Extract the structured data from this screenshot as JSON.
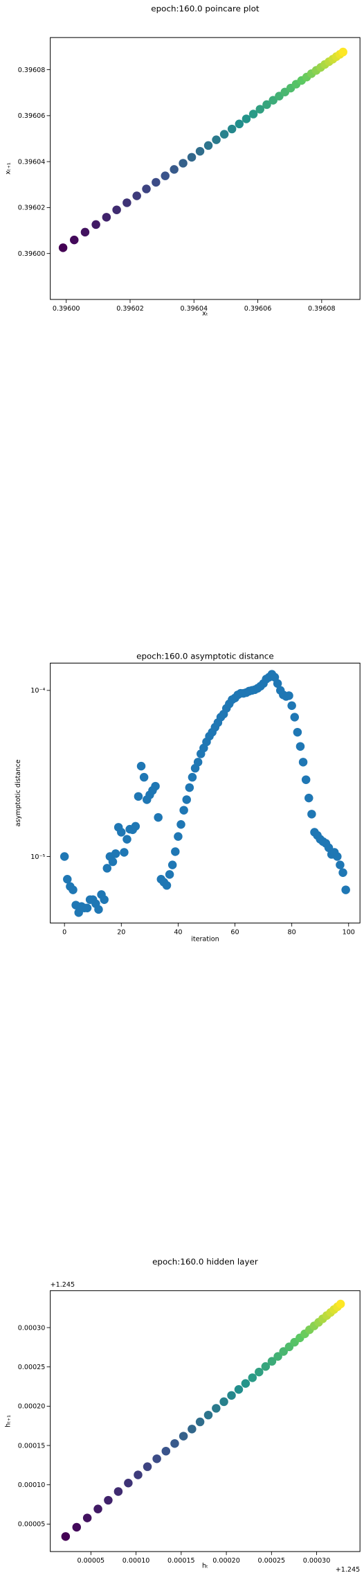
{
  "chart_data": [
    {
      "type": "scatter",
      "title": "epoch:160.0 poincare plot",
      "xlabel": "xₜ",
      "ylabel": "xₜ₊₁",
      "colormap": "viridis",
      "x": [
        0.395999,
        0.3960025,
        0.3960059,
        0.3960093,
        0.3960126,
        0.3960158,
        0.396019,
        0.3960221,
        0.3960251,
        0.3960281,
        0.396031,
        0.3960338,
        0.3960366,
        0.3960393,
        0.3960419,
        0.3960445,
        0.396047,
        0.3960495,
        0.3960519,
        0.3960542,
        0.3960564,
        0.3960586,
        0.3960607,
        0.3960628,
        0.3960648,
        0.3960667,
        0.3960685,
        0.3960703,
        0.396072,
        0.3960737,
        0.3960753,
        0.3960768,
        0.3960783,
        0.3960797,
        0.396081,
        0.3960823,
        0.3960835,
        0.3960846,
        0.3960857,
        0.3960867
      ],
      "y": [
        0.3960025,
        0.3960059,
        0.3960093,
        0.3960126,
        0.3960158,
        0.396019,
        0.3960221,
        0.3960251,
        0.3960281,
        0.396031,
        0.3960338,
        0.3960366,
        0.3960393,
        0.3960419,
        0.3960445,
        0.396047,
        0.3960495,
        0.3960519,
        0.3960542,
        0.3960564,
        0.3960586,
        0.3960607,
        0.3960628,
        0.3960648,
        0.3960667,
        0.3960685,
        0.3960703,
        0.396072,
        0.3960737,
        0.3960753,
        0.3960768,
        0.3960783,
        0.3960797,
        0.396081,
        0.3960823,
        0.3960835,
        0.3960846,
        0.3960857,
        0.3960867,
        0.3960877
      ],
      "xlim": [
        0.395995,
        0.396092
      ],
      "ylim": [
        0.39598,
        0.396094
      ],
      "xticks": [
        {
          "value": 0.396,
          "label": "0.39600"
        },
        {
          "value": 0.39602,
          "label": "0.39602"
        },
        {
          "value": 0.39604,
          "label": "0.39604"
        },
        {
          "value": 0.39606,
          "label": "0.39606"
        },
        {
          "value": 0.39608,
          "label": "0.39608"
        }
      ],
      "yticks": [
        {
          "value": 0.396,
          "label": "0.39600"
        },
        {
          "value": 0.39602,
          "label": "0.39602"
        },
        {
          "value": 0.39604,
          "label": "0.39604"
        },
        {
          "value": 0.39606,
          "label": "0.39606"
        },
        {
          "value": 0.39608,
          "label": "0.39608"
        }
      ]
    },
    {
      "type": "scatter",
      "title": "epoch:160.0 asymptotic distance",
      "xlabel": "iteration",
      "ylabel": "asymptotic distance",
      "color": "#1f77b4",
      "ylog": true,
      "x": [
        0,
        1,
        2,
        3,
        4,
        5,
        6,
        7,
        8,
        9,
        10,
        11,
        12,
        13,
        14,
        15,
        16,
        17,
        18,
        19,
        20,
        21,
        22,
        23,
        24,
        25,
        26,
        27,
        28,
        29,
        30,
        31,
        32,
        33,
        34,
        35,
        36,
        37,
        38,
        39,
        40,
        41,
        42,
        43,
        44,
        45,
        46,
        47,
        48,
        49,
        50,
        51,
        52,
        53,
        54,
        55,
        56,
        57,
        58,
        59,
        60,
        61,
        62,
        63,
        64,
        65,
        66,
        67,
        68,
        69,
        70,
        71,
        72,
        73,
        74,
        75,
        76,
        77,
        78,
        79,
        80,
        81,
        82,
        83,
        84,
        85,
        86,
        87,
        88,
        89,
        90,
        91,
        92,
        93,
        94,
        95,
        96,
        97,
        98,
        99
      ],
      "y": [
        1e-05,
        7.3e-06,
        6.6e-06,
        6.3e-06,
        5.1e-06,
        4.6e-06,
        5e-06,
        4.9e-06,
        4.9e-06,
        5.5e-06,
        5.5e-06,
        5.2e-06,
        4.8e-06,
        5.9e-06,
        5.5e-06,
        8.5e-06,
        1e-05,
        9.3e-06,
        1.04e-05,
        1.5e-05,
        1.4e-05,
        1.06e-05,
        1.27e-05,
        1.46e-05,
        1.45e-05,
        1.52e-05,
        2.3e-05,
        3.5e-05,
        3e-05,
        2.2e-05,
        2.35e-05,
        2.5e-05,
        2.65e-05,
        1.72e-05,
        7.3e-06,
        7e-06,
        6.7e-06,
        7.8e-06,
        8.9e-06,
        1.07e-05,
        1.32e-05,
        1.56e-05,
        1.9e-05,
        2.2e-05,
        2.6e-05,
        3e-05,
        3.4e-05,
        3.7e-05,
        4.15e-05,
        4.5e-05,
        4.9e-05,
        5.3e-05,
        5.6e-05,
        6e-05,
        6.4e-05,
        6.9e-05,
        7.2e-05,
        7.8e-05,
        8.3e-05,
        8.8e-05,
        9e-05,
        9.4e-05,
        9.6e-05,
        9.6e-05,
        9.7e-05,
        9.9e-05,
        0.0001,
        0.000101,
        0.000103,
        0.000106,
        0.00011,
        0.000117,
        0.00012,
        0.000125,
        0.00012,
        0.00011,
        0.0001,
        9.4e-05,
        9.2e-05,
        9.3e-05,
        8.1e-05,
        6.9e-05,
        5.6e-05,
        4.6e-05,
        3.7e-05,
        2.9e-05,
        2.25e-05,
        1.8e-05,
        1.4e-05,
        1.34e-05,
        1.27e-05,
        1.23e-05,
        1.2e-05,
        1.13e-05,
        1.03e-05,
        1.06e-05,
        1e-05,
        8.9e-06,
        8e-06,
        6.3e-06
      ],
      "xlim": [
        -5,
        104
      ],
      "ylim": [
        3.98e-06,
        0.000146
      ],
      "xticks": [
        0,
        20,
        40,
        60,
        80,
        100
      ],
      "yticks": [
        {
          "value": 1e-05,
          "label": "10⁻⁵"
        },
        {
          "value": 0.0001,
          "label": "10⁻⁴"
        }
      ]
    },
    {
      "type": "scatter",
      "title": "epoch:160.0 hidden layer",
      "xlabel": "hₜ",
      "ylabel": "hₜ₊₁",
      "colormap": "viridis",
      "x_offset": "+1.245",
      "y_offset": "+1.245",
      "x": [
        2.2e-05,
        3.42e-05,
        4.6e-05,
        5.78e-05,
        6.92e-05,
        8.03e-05,
        9.14e-05,
        0.0001022,
        0.0001126,
        0.000123,
        0.0001331,
        0.0001428,
        0.0001525,
        0.0001619,
        0.0001709,
        0.00018,
        0.0001887,
        0.0001973,
        0.0002057,
        0.0002137,
        0.0002213,
        0.0002289,
        0.0002362,
        0.0002435,
        0.0002505,
        0.0002571,
        0.0002633,
        0.0002696,
        0.0002755,
        0.0002814,
        0.0002869,
        0.0002921,
        0.0002973,
        0.0003022,
        0.0003067,
        0.0003112,
        0.0003154,
        0.0003192,
        0.000323,
        0.0003265
      ],
      "y": [
        3.42e-05,
        4.6e-05,
        5.78e-05,
        6.92e-05,
        8.03e-05,
        9.14e-05,
        0.0001022,
        0.0001126,
        0.000123,
        0.0001331,
        0.0001428,
        0.0001525,
        0.0001619,
        0.0001709,
        0.00018,
        0.0001887,
        0.0001973,
        0.0002057,
        0.0002137,
        0.0002213,
        0.0002289,
        0.0002362,
        0.0002435,
        0.0002505,
        0.0002571,
        0.0002633,
        0.0002696,
        0.0002755,
        0.0002814,
        0.0002869,
        0.0002921,
        0.0002973,
        0.0003022,
        0.0003067,
        0.0003112,
        0.0003154,
        0.0003192,
        0.000323,
        0.0003265,
        0.00033
      ],
      "xlim": [
        5e-06,
        0.000348
      ],
      "ylim": [
        1.5e-05,
        0.000347
      ],
      "xticks": [
        {
          "value": 5e-05,
          "label": "0.00005"
        },
        {
          "value": 0.0001,
          "label": "0.00010"
        },
        {
          "value": 0.00015,
          "label": "0.00015"
        },
        {
          "value": 0.0002,
          "label": "0.00020"
        },
        {
          "value": 0.00025,
          "label": "0.00025"
        },
        {
          "value": 0.0003,
          "label": "0.00030"
        }
      ],
      "yticks": [
        {
          "value": 5e-05,
          "label": "0.00005"
        },
        {
          "value": 0.0001,
          "label": "0.00010"
        },
        {
          "value": 0.00015,
          "label": "0.00015"
        },
        {
          "value": 0.0002,
          "label": "0.00020"
        },
        {
          "value": 0.00025,
          "label": "0.00025"
        },
        {
          "value": 0.0003,
          "label": "0.00030"
        }
      ]
    }
  ]
}
